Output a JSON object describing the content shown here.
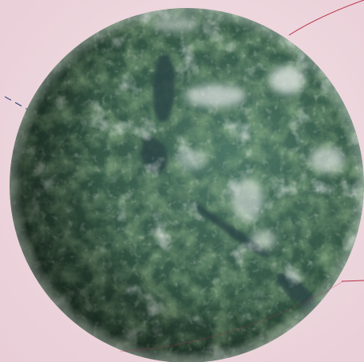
{
  "scene": {
    "background_color": "#f0d9df",
    "background_edge_color": "#e8cdd6",
    "orbit_line_color": "#b8324a",
    "dashed_line_color": "#3b4f86",
    "planet": {
      "ocean_color": "#3a5a58",
      "land_color": "#3f6d3a",
      "highland_color": "#8f9a86",
      "cloud_color": "#f2f4f2",
      "shadow_color": "#0e1610",
      "lit_side": "right",
      "icon": "planet-globe"
    }
  }
}
